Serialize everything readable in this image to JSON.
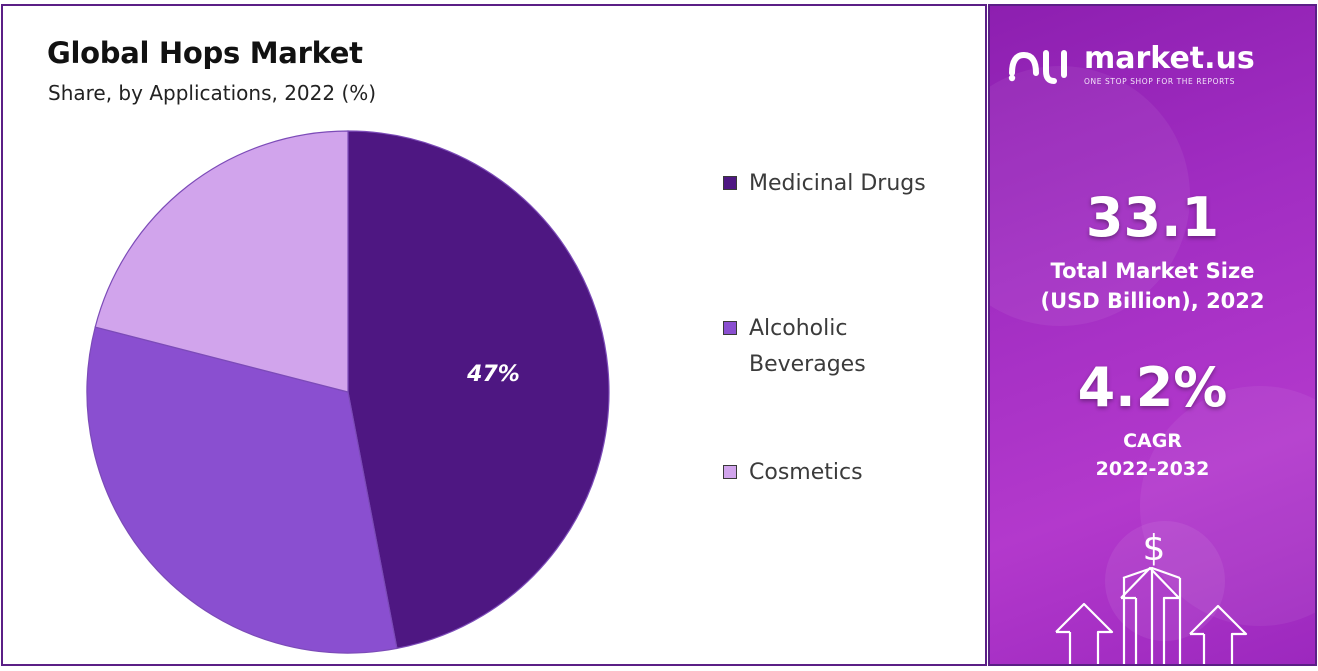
{
  "chart": {
    "title": "Global Hops Market",
    "subtitle": "Share, by Applications, 2022 (%)"
  },
  "chart_data": {
    "type": "pie",
    "categories": [
      "Medicinal Drugs",
      "Alcoholic Beverages",
      "Cosmetics"
    ],
    "values": [
      47,
      32,
      21
    ],
    "labels_shown": [
      "47%",
      "",
      ""
    ],
    "colors": [
      "#4e1782",
      "#8a4fd0",
      "#d1a4ec"
    ],
    "title": "Global Hops Market",
    "subtitle": "Share, by Applications, 2022 (%)",
    "legend_position": "right"
  },
  "legend": {
    "items": [
      {
        "label": "Medicinal Drugs",
        "color": "#4e1782"
      },
      {
        "label": "Alcoholic",
        "label2": "Beverages",
        "color": "#8a4fd0"
      },
      {
        "label": "Cosmetics",
        "color": "#d1a4ec"
      }
    ]
  },
  "sidebar": {
    "brand_name": "market.us",
    "brand_tagline": "ONE STOP SHOP FOR THE REPORTS",
    "market_size_value": "33.1",
    "market_size_label_1": "Total Market Size",
    "market_size_label_2": "(USD Billion), 2022",
    "cagr_value": "4.2%",
    "cagr_label_1": "CAGR",
    "cagr_label_2": "2022-2032",
    "dollar_symbol": "$",
    "icons": [
      "market-us-logo-icon",
      "dollar-icon",
      "up-arrow-icon"
    ]
  }
}
